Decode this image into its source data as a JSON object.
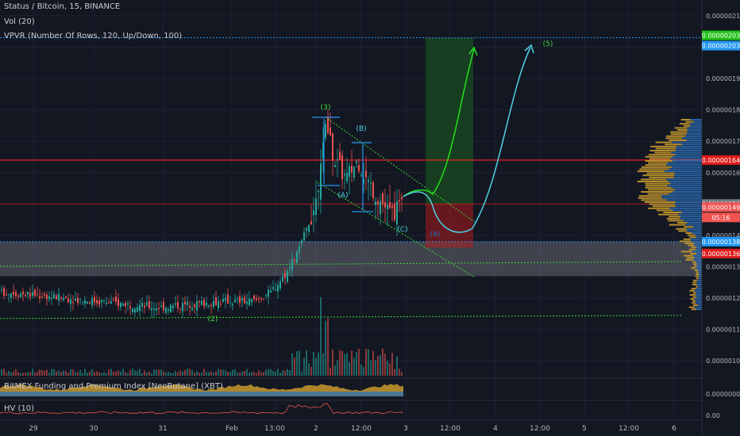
{
  "header": {
    "symbol": "Status / Bitcoin, 15, BINANCE",
    "vol": "Vol (20)",
    "vpvr": "VPVR (Number Of Rows, 120, Up/Down, 100)"
  },
  "indicators": {
    "bitmex": "BitMEX Funding and Premium Index [NeoButane] (XBT)",
    "hv": "HV (10)"
  },
  "colors": {
    "background": "#131722",
    "grid": "#1e2230",
    "up": "#26a69a",
    "down": "#ef5350",
    "wave": "#2196f3",
    "green_path": "#22e11c",
    "cyan_path": "#4dd0e1",
    "support": "#3ed936",
    "resistance": "#ff1e1e",
    "zone": "#787b86",
    "vp_up": "#2e6fb8",
    "vp_down": "#c99a2e"
  },
  "price_badges": [
    {
      "label": "0.00000203",
      "color": "#22c01a"
    },
    {
      "label": "0.00000203",
      "color": "#2196f3"
    },
    {
      "label": "0.00000164",
      "color": "#e01b1b"
    },
    {
      "label": "0.00000150",
      "color": "#787b86"
    },
    {
      "label": "0.00000149",
      "color": "#ef5350"
    },
    {
      "label": "05:16",
      "color": "#ef5350"
    },
    {
      "label": "0.00000138",
      "color": "#2196f3"
    },
    {
      "label": "0.00000136",
      "color": "#e01b1b"
    }
  ],
  "bottom_axis_labels": [
    "0.00000000",
    "0.00"
  ],
  "wave_labels": [
    "(2)",
    "(3)",
    "(A)",
    "(B)",
    "(C)",
    "(4)",
    "(5)"
  ],
  "chart_data": {
    "type": "candlestick",
    "y_axis": {
      "ticks": [
        "0.00000210",
        "0.00000200",
        "0.00000190",
        "0.00000180",
        "0.00000170",
        "0.00000160",
        "0.00000150",
        "0.00000140",
        "0.00000130",
        "0.00000120",
        "0.00000110",
        "0.00000100"
      ],
      "range": [
        9.5e-07,
        2.13e-06
      ]
    },
    "x_axis": {
      "ticks": [
        "29",
        "30",
        "31",
        "Feb",
        "13:00",
        "2",
        "12:00",
        "3",
        "12:00",
        "4",
        "12:00",
        "5",
        "12:00",
        "6"
      ]
    },
    "price_path": [
      [
        0,
        1.22e-06
      ],
      [
        40,
        1.21e-06
      ],
      [
        80,
        1.2e-06
      ],
      [
        120,
        1.19e-06
      ],
      [
        160,
        1.18e-06
      ],
      [
        200,
        1.17e-06
      ],
      [
        240,
        1.18e-06
      ],
      [
        280,
        1.19e-06
      ],
      [
        320,
        1.19e-06
      ],
      [
        340,
        1.22e-06
      ],
      [
        360,
        1.28e-06
      ],
      [
        375,
        1.35e-06
      ],
      [
        388,
        1.44e-06
      ],
      [
        398,
        1.52e-06
      ],
      [
        405,
        1.7e-06
      ],
      [
        410,
        1.75e-06
      ],
      [
        420,
        1.64e-06
      ],
      [
        435,
        1.58e-06
      ],
      [
        450,
        1.64e-06
      ],
      [
        460,
        1.58e-06
      ],
      [
        475,
        1.52e-06
      ],
      [
        490,
        1.47e-06
      ],
      [
        508,
        1.49e-06
      ]
    ],
    "levels": {
      "target": 2.03e-06,
      "resistance": 1.64e-06,
      "current": 1.5e-06,
      "zone_top": 1.38e-06,
      "zone_bottom": 1.27e-06,
      "wave2_support": 1.14e-06
    },
    "projection": {
      "long_entry": 1.5e-06,
      "long_target": 2.03e-06,
      "long_stop": 1.36e-06
    }
  }
}
